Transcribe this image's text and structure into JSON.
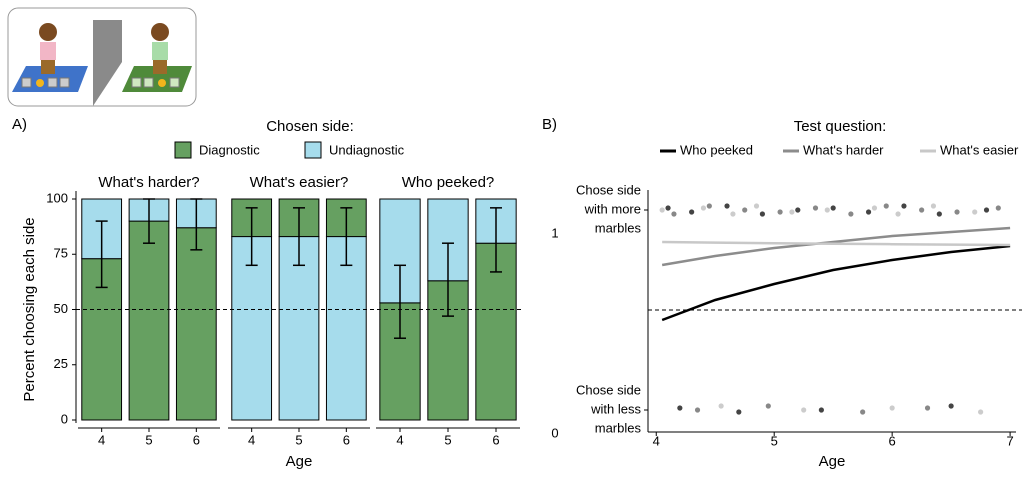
{
  "chart_data": [
    {
      "type": "stacked_bar_facets",
      "panel": "A)",
      "legend_title": "Chosen side:",
      "y_label": "Percent choosing each side",
      "x_label": "Age",
      "categories": [
        "4",
        "5",
        "6"
      ],
      "series": [
        {
          "name": "Diagnostic",
          "color": "#66a061"
        },
        {
          "name": "Undiagnostic",
          "color": "#a6dcec"
        }
      ],
      "ylim": [
        0,
        100
      ],
      "yticks": [
        0,
        25,
        50,
        75,
        100
      ],
      "reference_line": 50,
      "facets": [
        {
          "title": "What's harder?",
          "values": [
            [
              73,
              90,
              87
            ],
            [
              27,
              10,
              13
            ]
          ],
          "stack_order": [
            0,
            1
          ],
          "err_low": [
            60,
            80,
            77
          ],
          "err_high": [
            90,
            100,
            100
          ]
        },
        {
          "title": "What's easier?",
          "values": [
            [
              17,
              17,
              17
            ],
            [
              83,
              83,
              83
            ]
          ],
          "stack_order": [
            1,
            0
          ],
          "err_low": [
            70,
            70,
            70
          ],
          "err_high": [
            96,
            96,
            96
          ]
        },
        {
          "title": "Who peeked?",
          "values": [
            [
              53,
              63,
              80
            ],
            [
              47,
              37,
              20
            ]
          ],
          "stack_order": [
            0,
            1
          ],
          "err_low": [
            37,
            47,
            67
          ],
          "err_high": [
            70,
            80,
            96
          ]
        }
      ]
    },
    {
      "type": "line",
      "panel": "B)",
      "legend_title": "Test question:",
      "x_label": "Age",
      "xlim": [
        3.93,
        7.05
      ],
      "xticks": [
        4,
        5,
        6,
        7
      ],
      "ylim": [
        -0.11,
        1.1
      ],
      "yticks": [
        0,
        1
      ],
      "ytick_text": [
        [
          "Chose side",
          "with less",
          "marbles"
        ],
        [
          "Chose side",
          "with more",
          "marbles"
        ]
      ],
      "reference_line": 0.5,
      "x": [
        4.05,
        4.5,
        5,
        5.5,
        6,
        6.5,
        7
      ],
      "series": [
        {
          "name": "Who peeked",
          "color": "#000000",
          "point_color": "#444444",
          "values": [
            0.45,
            0.55,
            0.63,
            0.7,
            0.75,
            0.79,
            0.82
          ],
          "points_x": [
            4.1,
            4.3,
            4.6,
            4.9,
            5.2,
            5.5,
            5.8,
            6.1,
            6.4,
            6.8,
            4.2,
            4.7,
            5.4,
            6.5
          ],
          "points_y": [
            1.01,
            0.99,
            1.02,
            0.98,
            1.0,
            1.01,
            0.99,
            1.02,
            0.98,
            1.0,
            0.01,
            -0.01,
            0.0,
            0.02
          ]
        },
        {
          "name": "What's harder",
          "color": "#8c8c8c",
          "point_color": "#888888",
          "values": [
            0.725,
            0.77,
            0.81,
            0.84,
            0.87,
            0.89,
            0.91
          ],
          "points_x": [
            4.15,
            4.45,
            4.75,
            5.05,
            5.35,
            5.65,
            5.95,
            6.25,
            6.55,
            6.9,
            4.35,
            4.95,
            5.75,
            6.3
          ],
          "points_y": [
            0.98,
            1.02,
            1.0,
            0.99,
            1.01,
            0.98,
            1.02,
            1.0,
            0.99,
            1.01,
            0.0,
            0.02,
            -0.01,
            0.01
          ]
        },
        {
          "name": "What's easier",
          "color": "#c8c8c8",
          "point_color": "#cccccc",
          "values": [
            0.84,
            0.837,
            0.834,
            0.831,
            0.829,
            0.827,
            0.825
          ],
          "points_x": [
            4.05,
            4.4,
            4.65,
            4.85,
            5.15,
            5.45,
            5.85,
            6.05,
            6.35,
            6.7,
            4.55,
            5.25,
            6.0,
            6.75
          ],
          "points_y": [
            1.0,
            1.01,
            0.98,
            1.02,
            0.99,
            1.0,
            1.01,
            0.98,
            1.02,
            0.99,
            0.02,
            0.0,
            0.01,
            -0.01
          ]
        }
      ]
    }
  ]
}
